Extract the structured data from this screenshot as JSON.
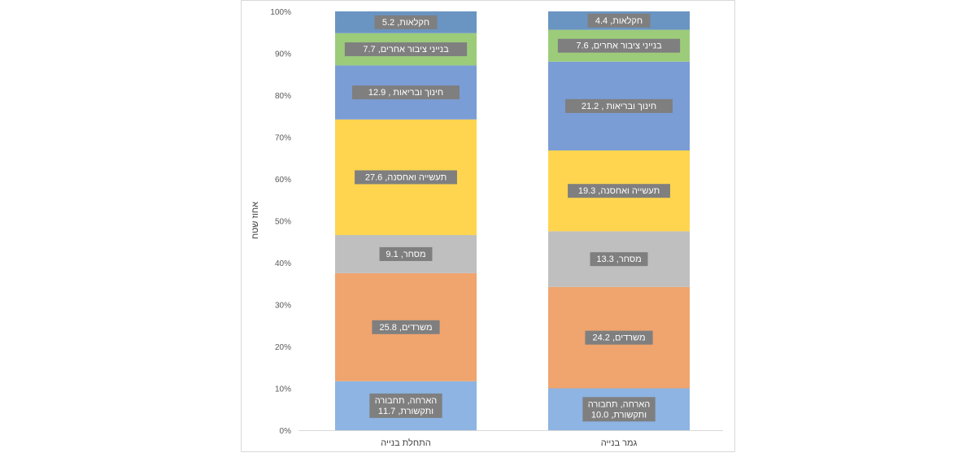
{
  "chart_data": {
    "type": "bar",
    "stacked": true,
    "ylabel": "אחוז שטח",
    "ylim": [
      0,
      100
    ],
    "yticks": [
      "0%",
      "10%",
      "20%",
      "30%",
      "40%",
      "50%",
      "60%",
      "70%",
      "80%",
      "90%",
      "100%"
    ],
    "categories": [
      "התחלת בנייה",
      "גמר בנייה"
    ],
    "grid": false,
    "series": [
      {
        "name": "הארחה, תחבורה ותקשורת",
        "color": "#8db4e2",
        "values": [
          11.7,
          10.0
        ],
        "labels": [
          "הארחה, תחבורה|ותקשורת, 11.7",
          "הארחה, תחבורה|ותקשורת, 10.0"
        ]
      },
      {
        "name": "משרדים",
        "color": "#f0a46e",
        "values": [
          25.8,
          24.2
        ],
        "labels": [
          "משרדים, 25.8",
          "משרדים, 24.2"
        ]
      },
      {
        "name": "מסחר",
        "color": "#bfbfbf",
        "values": [
          9.1,
          13.3
        ],
        "labels": [
          "מסחר, 9.1",
          "מסחר, 13.3"
        ]
      },
      {
        "name": "תעשייה ואחסנה",
        "color": "#ffd54f",
        "values": [
          27.6,
          19.3
        ],
        "labels": [
          "תעשייה ואחסנה, 27.6",
          "תעשייה ואחסנה, 19.3"
        ]
      },
      {
        "name": "חינוך ובריאות",
        "color": "#7b9dd6",
        "values": [
          12.9,
          21.2
        ],
        "labels": [
          "חינוך ובריאות , 12.9",
          "חינוך ובריאות , 21.2"
        ]
      },
      {
        "name": "בנייני ציבור אחרים",
        "color": "#9ccc7a",
        "values": [
          7.7,
          7.6
        ],
        "labels": [
          "בנייני ציבור אחרים, 7.7",
          "בנייני ציבור אחרים, 7.6"
        ]
      },
      {
        "name": "חקלאות",
        "color": "#6a95c2",
        "values": [
          5.2,
          4.4
        ],
        "labels": [
          "חקלאות, 5.2",
          "חקלאות, 4.4"
        ]
      }
    ]
  }
}
